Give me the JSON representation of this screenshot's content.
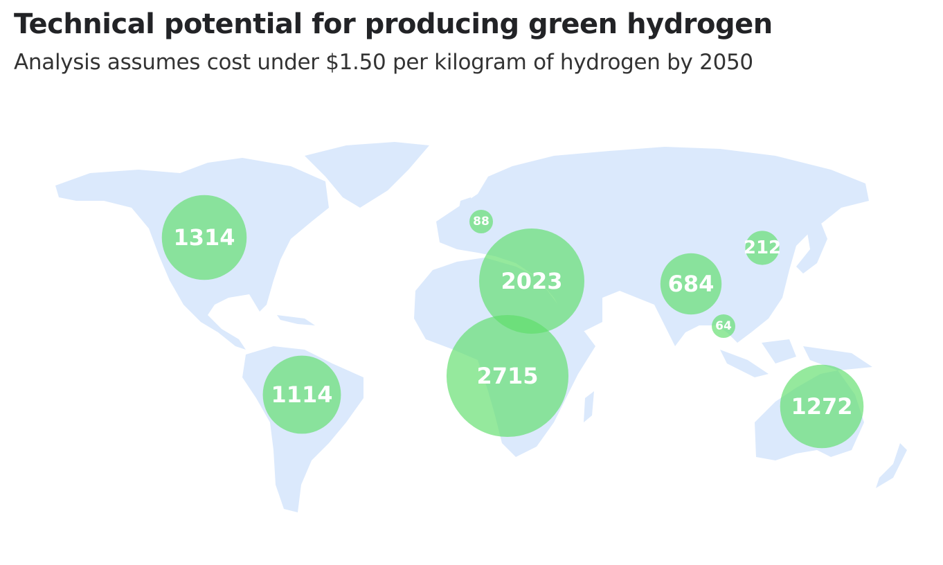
{
  "title": "Technical potential for producing green hydrogen",
  "subtitle": "Analysis assumes cost under $1.50 per kilogram of hydrogen by 2050",
  "colors": {
    "land": "#dbe9fc",
    "bubble": "#5ede6a",
    "label": "#ffffff",
    "title": "#222326"
  },
  "chart_data": {
    "type": "bubble-map",
    "title": "Technical potential for producing green hydrogen",
    "subtitle": "Analysis assumes cost under $1.50 per kilogram of hydrogen by 2050",
    "values": [
      1314,
      88,
      2023,
      212,
      684,
      64,
      2715,
      1114,
      1272
    ]
  }
}
